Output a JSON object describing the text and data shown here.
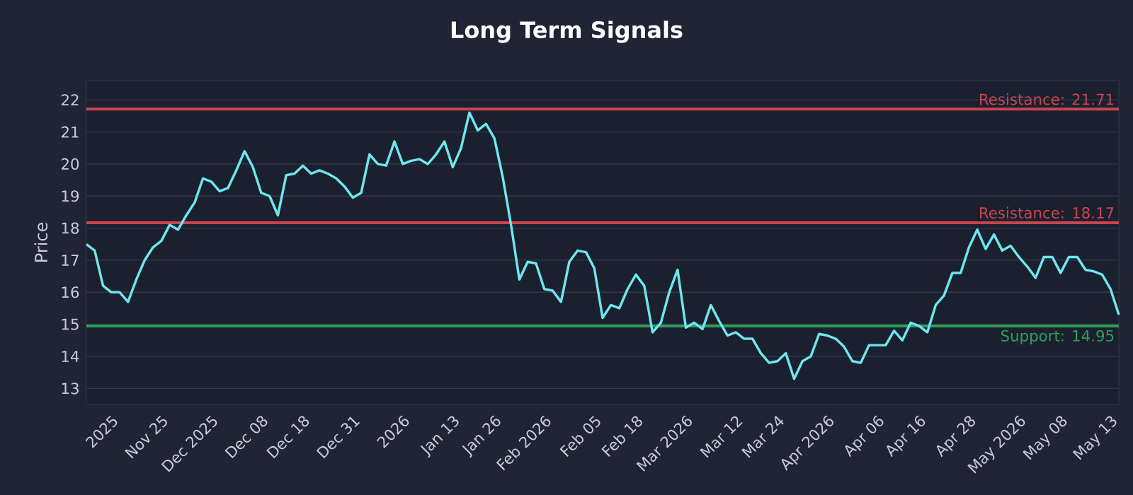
{
  "chart_data": {
    "type": "line",
    "title": "Long Term Signals",
    "ylabel": "Price",
    "categories": [
      null,
      null,
      null,
      "2025",
      null,
      null,
      null,
      null,
      null,
      "Nov 25",
      null,
      null,
      null,
      null,
      null,
      "Dec 2025",
      null,
      null,
      null,
      null,
      null,
      "Dec 08",
      null,
      null,
      null,
      null,
      "Dec 18",
      null,
      null,
      null,
      null,
      null,
      "Dec 31",
      null,
      null,
      null,
      null,
      null,
      "2026",
      null,
      null,
      null,
      null,
      null,
      "Jan 13",
      null,
      null,
      null,
      null,
      "Jan 26",
      null,
      null,
      null,
      null,
      null,
      "Feb 2026",
      null,
      null,
      null,
      null,
      null,
      "Feb 05",
      null,
      null,
      null,
      null,
      "Feb 18",
      null,
      null,
      null,
      null,
      null,
      "Mar 2026",
      null,
      null,
      null,
      null,
      null,
      "Mar 12",
      null,
      null,
      null,
      null,
      "Mar 24",
      null,
      null,
      null,
      null,
      null,
      "Apr 2026",
      null,
      null,
      null,
      null,
      null,
      "Apr 06",
      null,
      null,
      null,
      null,
      "Apr 16",
      null,
      null,
      null,
      null,
      null,
      "Apr 28",
      null,
      null,
      null,
      null,
      null,
      "May 2026",
      null,
      null,
      null,
      null,
      "May 08",
      null,
      null,
      null,
      null,
      null,
      "May 13",
      null
    ],
    "series": [
      {
        "color": "#6ee6ef",
        "values": [
          17.5,
          17.3,
          16.2,
          16.0,
          16.0,
          15.7,
          16.4,
          17.0,
          17.4,
          17.6,
          18.1,
          17.95,
          18.4,
          18.8,
          19.55,
          19.45,
          19.15,
          19.25,
          19.8,
          20.4,
          19.9,
          19.1,
          19.0,
          18.4,
          19.65,
          19.7,
          19.95,
          19.7,
          19.8,
          19.7,
          19.55,
          19.3,
          18.95,
          19.1,
          20.3,
          20.0,
          19.95,
          20.7,
          20.0,
          20.1,
          20.15,
          20.0,
          20.3,
          20.7,
          19.9,
          20.5,
          21.6,
          21.05,
          21.25,
          20.8,
          19.6,
          18.1,
          16.4,
          16.95,
          16.9,
          16.1,
          16.05,
          15.7,
          16.95,
          17.3,
          17.25,
          16.75,
          15.2,
          15.6,
          15.5,
          16.1,
          16.55,
          16.2,
          14.75,
          15.05,
          16.0,
          16.7,
          14.9,
          15.05,
          14.85,
          15.6,
          15.1,
          14.65,
          14.75,
          14.55,
          14.55,
          14.1,
          13.8,
          13.85,
          14.1,
          13.3,
          13.85,
          14.0,
          14.7,
          14.65,
          14.55,
          14.3,
          13.85,
          13.8,
          14.35,
          14.35,
          14.35,
          14.8,
          14.5,
          15.05,
          14.95,
          14.75,
          15.6,
          15.9,
          16.6,
          16.6,
          17.4,
          17.95,
          17.35,
          17.8,
          17.3,
          17.45,
          17.1,
          16.8,
          16.45,
          17.1,
          17.1,
          16.6,
          17.1,
          17.1,
          16.7,
          16.65,
          16.55,
          16.1,
          15.3
        ]
      }
    ],
    "ylim": [
      12.5,
      22.6
    ],
    "yticks": [
      13,
      14,
      15,
      16,
      17,
      18,
      19,
      20,
      21,
      22
    ],
    "grid": "y",
    "marker": "none",
    "line_style": "solid",
    "ref_lines": [
      {
        "axis": "y",
        "value": 21.71,
        "label": "Resistance: 21.71",
        "color": "#c9444f"
      },
      {
        "axis": "y",
        "value": 18.17,
        "label": "Resistance: 18.17",
        "color": "#c9444f"
      },
      {
        "axis": "y",
        "value": 14.95,
        "label": "Support: 14.95",
        "color": "#2e9e5b"
      }
    ]
  }
}
